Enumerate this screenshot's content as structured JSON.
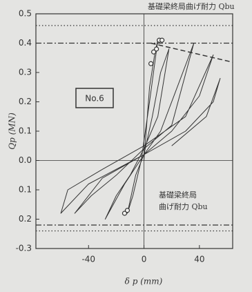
{
  "chart_data": {
    "type": "line",
    "x_label": "δ p (mm)",
    "y_label": "Qp (MN)",
    "annotations": [
      "基礎梁終局曲げ耐力 Qbu",
      "基礎梁終局",
      "曲げ耐力 Qbu",
      "No.6"
    ],
    "xlim": [
      -78,
      64
    ],
    "ylim": [
      -0.3,
      0.5
    ],
    "xticks": [
      -40,
      0,
      40
    ],
    "yticks": [
      0.5,
      0.4,
      0.3,
      0.2,
      {
        "value": 0.1,
        "label": "0.1"
      },
      {
        "value": 0,
        "label": "0.0"
      },
      {
        "value": -0.1,
        "label": "0.1"
      },
      {
        "value": -0.2,
        "label": "0.2"
      },
      -0.3
    ],
    "reference_lines": [
      {
        "value": 0.46,
        "style": "dotted"
      },
      {
        "value": 0.4,
        "style": "dashdot"
      },
      {
        "value": -0.22,
        "style": "dashdot"
      },
      {
        "value": -0.24,
        "style": "dotted"
      }
    ],
    "series": [
      {
        "color": "#333333",
        "style": "solid",
        "x": [
          0,
          4,
          8,
          10,
          4,
          -2,
          -8,
          -12,
          -6,
          0,
          6,
          12,
          18,
          10,
          0,
          -10,
          -20,
          -28,
          -14,
          0,
          12,
          24,
          36,
          20,
          0,
          -20,
          -38,
          -50,
          -30,
          0,
          20,
          40,
          50,
          30,
          0,
          -30,
          -55,
          -60,
          -40,
          0,
          30,
          50,
          55,
          45,
          20
        ],
        "values": [
          0,
          0.25,
          0.37,
          0.41,
          0.2,
          0,
          -0.12,
          -0.18,
          -0.05,
          0.02,
          0.15,
          0.3,
          0.38,
          0.15,
          0.04,
          -0.05,
          -0.12,
          -0.2,
          -0.08,
          0.02,
          0.1,
          0.25,
          0.4,
          0.12,
          0.04,
          -0.05,
          -0.12,
          -0.18,
          -0.06,
          0.02,
          0.1,
          0.22,
          0.36,
          0.15,
          0.05,
          -0.03,
          -0.1,
          -0.18,
          -0.08,
          0.02,
          0.1,
          0.2,
          0.28,
          0.15,
          0.05
        ]
      },
      {
        "color": "#333333",
        "style": "dashed",
        "x": [
          5,
          64
        ],
        "values": [
          0.4,
          0.335
        ]
      },
      {
        "color": "#333333",
        "style": "markers",
        "x": [
          5,
          7,
          9,
          11,
          13,
          -14,
          -12
        ],
        "values": [
          0.33,
          0.37,
          0.38,
          0.41,
          0.41,
          -0.18,
          -0.17
        ]
      }
    ]
  }
}
